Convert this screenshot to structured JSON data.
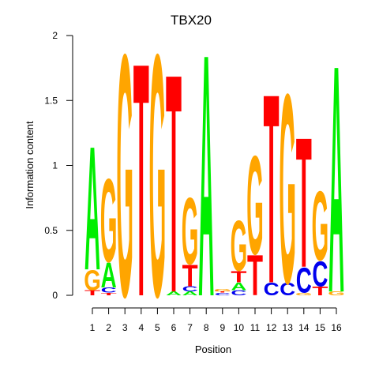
{
  "chart_data": {
    "type": "sequence-logo",
    "title": "TBX20",
    "xlabel": "Position",
    "ylabel": "Information content",
    "ylim": [
      0,
      2
    ],
    "yticks": [
      "0",
      "0.5",
      "1",
      "1.5",
      "2"
    ],
    "colors": {
      "A": "#00ee00",
      "C": "#0000ee",
      "G": "#ffa500",
      "T": "#ff0000"
    },
    "positions": [
      {
        "label": "1",
        "stack": [
          {
            "base": "T",
            "height": 0.04
          },
          {
            "base": "G",
            "height": 0.16
          },
          {
            "base": "A",
            "height": 0.98
          }
        ]
      },
      {
        "label": "2",
        "stack": [
          {
            "base": "T",
            "height": 0.02
          },
          {
            "base": "C",
            "height": 0.04
          },
          {
            "base": "A",
            "height": 0.2
          },
          {
            "base": "G",
            "height": 0.66
          }
        ]
      },
      {
        "label": "3",
        "stack": [
          {
            "base": "G",
            "height": 1.92
          }
        ]
      },
      {
        "label": "4",
        "stack": [
          {
            "base": "T",
            "height": 1.85
          }
        ]
      },
      {
        "label": "5",
        "stack": [
          {
            "base": "G",
            "height": 1.92
          }
        ]
      },
      {
        "label": "6",
        "stack": [
          {
            "base": "A",
            "height": 0.03
          },
          {
            "base": "T",
            "height": 1.73
          }
        ]
      },
      {
        "label": "7",
        "stack": [
          {
            "base": "A",
            "height": 0.03
          },
          {
            "base": "C",
            "height": 0.04
          },
          {
            "base": "T",
            "height": 0.17
          },
          {
            "base": "G",
            "height": 0.53
          }
        ]
      },
      {
        "label": "8",
        "stack": [
          {
            "base": "A",
            "height": 1.92
          }
        ]
      },
      {
        "label": "9",
        "stack": [
          {
            "base": "C",
            "height": 0.02
          },
          {
            "base": "T",
            "height": 0.01
          },
          {
            "base": "G",
            "height": 0.02
          }
        ]
      },
      {
        "label": "10",
        "stack": [
          {
            "base": "C",
            "height": 0.04
          },
          {
            "base": "A",
            "height": 0.06
          },
          {
            "base": "T",
            "height": 0.09
          },
          {
            "base": "G",
            "height": 0.4
          }
        ]
      },
      {
        "label": "11",
        "stack": [
          {
            "base": "T",
            "height": 0.32
          },
          {
            "base": "G",
            "height": 0.78
          }
        ]
      },
      {
        "label": "12",
        "stack": [
          {
            "base": "C",
            "height": 0.1
          },
          {
            "base": "T",
            "height": 1.5
          }
        ]
      },
      {
        "label": "13",
        "stack": [
          {
            "base": "C",
            "height": 0.1
          },
          {
            "base": "G",
            "height": 1.5
          }
        ]
      },
      {
        "label": "14",
        "stack": [
          {
            "base": "G",
            "height": 0.02
          },
          {
            "base": "C",
            "height": 0.2
          },
          {
            "base": "T",
            "height": 1.03
          }
        ]
      },
      {
        "label": "15",
        "stack": [
          {
            "base": "T",
            "height": 0.07
          },
          {
            "base": "C",
            "height": 0.2
          },
          {
            "base": "G",
            "height": 0.55
          }
        ]
      },
      {
        "label": "16",
        "stack": [
          {
            "base": "G",
            "height": 0.03
          },
          {
            "base": "A",
            "height": 1.8
          }
        ]
      }
    ]
  }
}
